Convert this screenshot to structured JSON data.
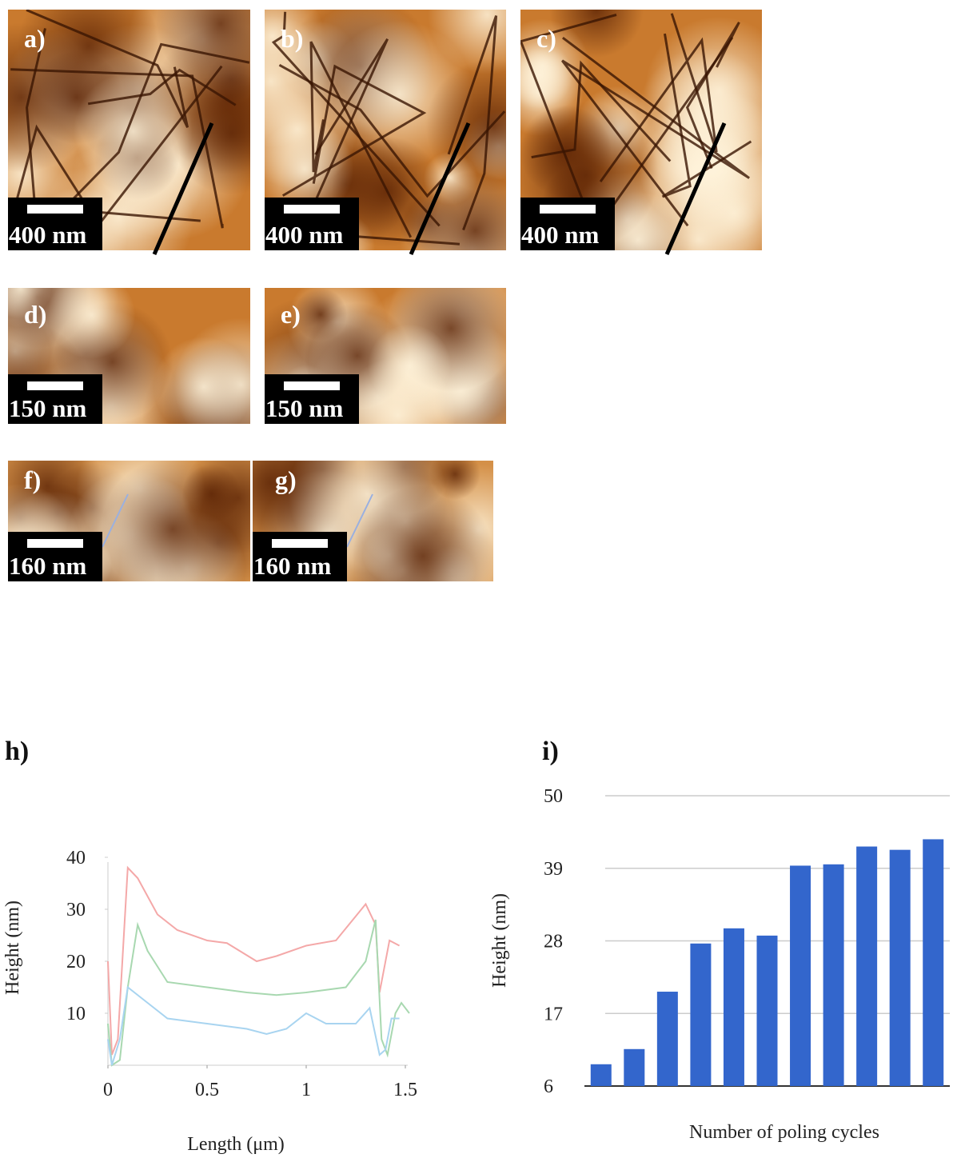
{
  "panels": [
    {
      "label": "a)",
      "scale": "400 nm"
    },
    {
      "label": "b)",
      "scale": "400 nm"
    },
    {
      "label": "c)",
      "scale": "400 nm"
    },
    {
      "label": "d)",
      "scale": "150 nm"
    },
    {
      "label": "e)",
      "scale": "150 nm"
    },
    {
      "label": "f)",
      "scale": "160 nm"
    },
    {
      "label": "g)",
      "scale": "160 nm"
    }
  ],
  "chart_data": [
    {
      "type": "line",
      "title": "h)",
      "y_label": "Height (nm)",
      "x_label": "Length (μm)",
      "xlim": [
        0,
        1.55
      ],
      "xticks": [
        0,
        0.5,
        1,
        1.5
      ],
      "ylim": [
        0,
        40
      ],
      "yticks": [
        10,
        20,
        30,
        40
      ],
      "series": [
        {
          "color": "#f4a8a8",
          "x": [
            0,
            0.02,
            0.05,
            0.1,
            0.15,
            0.25,
            0.35,
            0.5,
            0.6,
            0.75,
            0.85,
            1.0,
            1.15,
            1.3,
            1.35,
            1.37,
            1.42,
            1.47
          ],
          "values": [
            20,
            2,
            5,
            38,
            36,
            29,
            26,
            24,
            23.5,
            20,
            21,
            23,
            24,
            31,
            27,
            14,
            24,
            23
          ]
        },
        {
          "color": "#a8d8b0",
          "x": [
            0,
            0.02,
            0.06,
            0.1,
            0.15,
            0.2,
            0.3,
            0.5,
            0.7,
            0.85,
            1.0,
            1.2,
            1.3,
            1.35,
            1.38,
            1.41,
            1.45,
            1.48,
            1.52
          ],
          "values": [
            8,
            0,
            1,
            15,
            27,
            22,
            16,
            15,
            14,
            13.5,
            14,
            15,
            20,
            28,
            5,
            2,
            10,
            12,
            10
          ]
        },
        {
          "color": "#a8d4f0",
          "x": [
            0,
            0.02,
            0.06,
            0.1,
            0.2,
            0.3,
            0.5,
            0.7,
            0.8,
            0.9,
            1.0,
            1.1,
            1.25,
            1.32,
            1.37,
            1.4,
            1.43,
            1.47
          ],
          "values": [
            5,
            0,
            5,
            15,
            12,
            9,
            8,
            7,
            6,
            7,
            10,
            8,
            8,
            11,
            2,
            3,
            9,
            9
          ]
        }
      ]
    },
    {
      "type": "bar",
      "title": "i)",
      "y_label": "Height (nm)",
      "x_label": "Number of poling cycles",
      "color": "#3366cc",
      "grid": true,
      "categories": [
        null,
        null,
        null,
        null,
        null,
        null,
        null,
        null,
        null,
        null,
        null
      ],
      "values": [
        9.3,
        11.6,
        20.3,
        27.6,
        29.9,
        28.8,
        39.4,
        39.6,
        42.3,
        41.8,
        43.4
      ],
      "ylim": [
        6,
        50
      ],
      "yticks": [
        6,
        17,
        28,
        39,
        50
      ]
    }
  ]
}
